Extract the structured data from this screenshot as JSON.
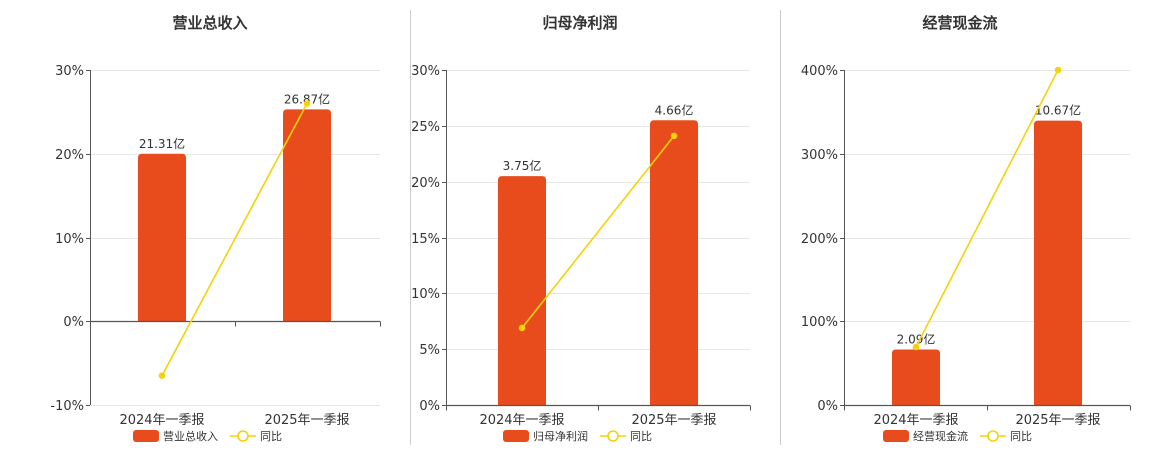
{
  "chart_data": [
    {
      "type": "bar",
      "title": "营业总收入",
      "categories": [
        "2024年一季报",
        "2025年一季报"
      ],
      "ylim": [
        -10,
        30
      ],
      "yticks": [
        "30%",
        "20%",
        "10%",
        "0%",
        "-10%"
      ],
      "series": [
        {
          "name": "营业总收入",
          "type": "bar",
          "values": [
            20,
            25.3
          ],
          "labels": [
            "21.31亿",
            "26.87亿"
          ]
        },
        {
          "name": "同比",
          "type": "line",
          "values": [
            -6.5,
            26
          ]
        }
      ],
      "legend": "bottom-center"
    },
    {
      "type": "bar",
      "title": "归母净利润",
      "categories": [
        "2024年一季报",
        "2025年一季报"
      ],
      "ylim": [
        0,
        30
      ],
      "yticks": [
        "30%",
        "25%",
        "20%",
        "15%",
        "10%",
        "5%",
        "0%"
      ],
      "series": [
        {
          "name": "归母净利润",
          "type": "bar",
          "values": [
            20.5,
            25.5
          ],
          "labels": [
            "3.75亿",
            "4.66亿"
          ]
        },
        {
          "name": "同比",
          "type": "line",
          "values": [
            6.9,
            24.1
          ]
        }
      ],
      "legend": "bottom-center"
    },
    {
      "type": "bar",
      "title": "经营现金流",
      "categories": [
        "2024年一季报",
        "2025年一季报"
      ],
      "ylim": [
        0,
        410
      ],
      "yticks": [
        "400%",
        "300%",
        "200%",
        "100%",
        "0%"
      ],
      "series": [
        {
          "name": "经营现金流",
          "type": "bar",
          "values": [
            68,
            348
          ],
          "labels": [
            "2.09亿",
            "10.67亿"
          ]
        },
        {
          "name": "同比",
          "type": "line",
          "values": [
            71,
            410
          ]
        }
      ],
      "legend": "bottom-center"
    }
  ],
  "colors": {
    "bar": "#e84c1c",
    "line": "#f5d20a",
    "grid": "#e6e6e6",
    "axis": "#555555",
    "divider": "#cccccc"
  }
}
